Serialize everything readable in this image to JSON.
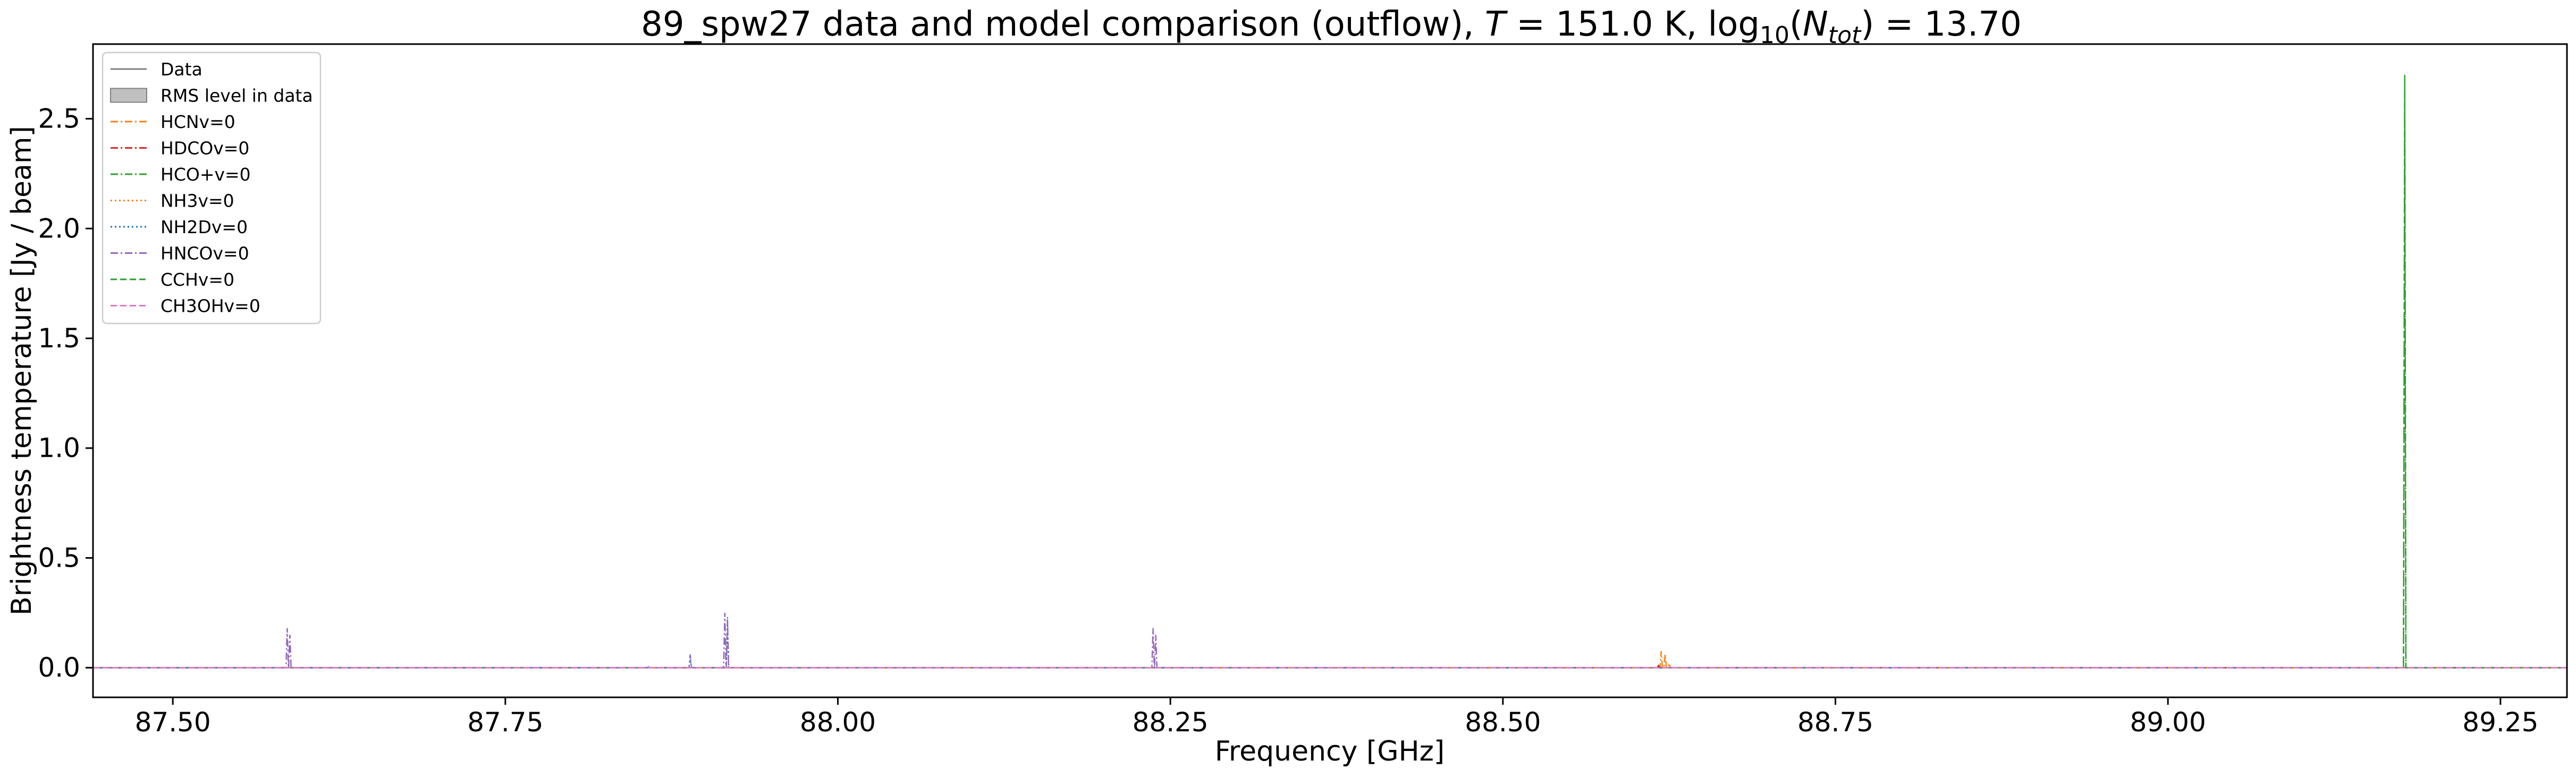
{
  "chart_data": {
    "type": "line",
    "title": {
      "prefix": "89_spw27 data and model comparison (outflow), ",
      "T_symbol": "T",
      "T_value": " = 151.0 K, log",
      "log_sub": "10",
      "N_open": "(",
      "N_symbol": "N",
      "N_sub": "tot",
      "N_close": ")",
      "N_value": " = 13.70"
    },
    "xlabel": "Frequency [GHz]",
    "ylabel": "Brightness temperature [Jy / beam]",
    "xlim": [
      87.44,
      89.3
    ],
    "ylim": [
      -0.135,
      2.84
    ],
    "xticks": [
      87.5,
      87.75,
      88.0,
      88.25,
      88.5,
      88.75,
      89.0,
      89.25
    ],
    "xtick_labels": [
      "87.50",
      "87.75",
      "88.00",
      "88.25",
      "88.50",
      "88.75",
      "89.00",
      "89.25"
    ],
    "yticks": [
      0.0,
      0.5,
      1.0,
      1.5,
      2.0,
      2.5
    ],
    "ytick_labels": [
      "0.0",
      "0.5",
      "1.0",
      "1.5",
      "2.0",
      "2.5"
    ],
    "grid": false,
    "legend_position": "upper left",
    "legend": [
      {
        "name": "Data",
        "style": "solid",
        "color": "#808080",
        "kind": "line"
      },
      {
        "name": "RMS level in data",
        "color": "#c0c0c0",
        "kind": "patch"
      },
      {
        "name": "HCNv=0",
        "style": "dashdot",
        "color": "#ff7f0e",
        "kind": "line"
      },
      {
        "name": "HDCOv=0",
        "style": "dashdot",
        "color": "#d62728",
        "kind": "line"
      },
      {
        "name": "HCO+v=0",
        "style": "dashdot",
        "color": "#2ca02c",
        "kind": "line"
      },
      {
        "name": "NH3v=0",
        "style": "dotted",
        "color": "#ff7f0e",
        "kind": "line"
      },
      {
        "name": "NH2Dv=0",
        "style": "dotted",
        "color": "#1f77b4",
        "kind": "line"
      },
      {
        "name": "HNCOv=0",
        "style": "dashdot",
        "color": "#9467bd",
        "kind": "line"
      },
      {
        "name": "CCHv=0",
        "style": "dashed",
        "color": "#2ca02c",
        "kind": "line"
      },
      {
        "name": "CH3OHv=0",
        "style": "dashed",
        "color": "#e377c2",
        "kind": "line"
      }
    ],
    "series": [
      {
        "name": "Data",
        "color": "#808080",
        "style": "solid",
        "points": [
          [
            87.44,
            0.0
          ],
          [
            89.3,
            0.0
          ]
        ]
      },
      {
        "name": "HCNv=0",
        "color": "#ff7f0e",
        "style": "dashdot",
        "peaks": [
          [
            88.619,
            0.075
          ],
          [
            88.622,
            0.06
          ],
          [
            88.625,
            0.02
          ]
        ]
      },
      {
        "name": "HDCOv=0",
        "color": "#d62728",
        "style": "dashdot",
        "peaks": [
          [
            88.617,
            0.01
          ]
        ]
      },
      {
        "name": "HCO+v=0",
        "color": "#2ca02c",
        "style": "dashdot",
        "peaks": [
          [
            89.178,
            2.62
          ]
        ]
      },
      {
        "name": "NH3v=0",
        "color": "#ff7f0e",
        "style": "dotted",
        "peaks": []
      },
      {
        "name": "NH2Dv=0",
        "color": "#1f77b4",
        "style": "dotted",
        "peaks": [
          [
            87.857,
            0.01
          ],
          [
            87.889,
            0.05
          ],
          [
            87.917,
            0.23
          ]
        ]
      },
      {
        "name": "HNCOv=0",
        "color": "#9467bd",
        "style": "dashdot",
        "peaks": [
          [
            87.586,
            0.18
          ],
          [
            87.588,
            0.15
          ],
          [
            87.889,
            0.06
          ],
          [
            87.915,
            0.25
          ],
          [
            87.917,
            0.22
          ],
          [
            88.237,
            0.18
          ],
          [
            88.239,
            0.15
          ]
        ]
      },
      {
        "name": "CCHv=0",
        "color": "#2ca02c",
        "style": "dashed",
        "peaks": [
          [
            89.178,
            2.7
          ]
        ]
      },
      {
        "name": "CH3OHv=0",
        "color": "#e377c2",
        "style": "dashed",
        "peaks": []
      }
    ],
    "rms_level": 0.005
  }
}
